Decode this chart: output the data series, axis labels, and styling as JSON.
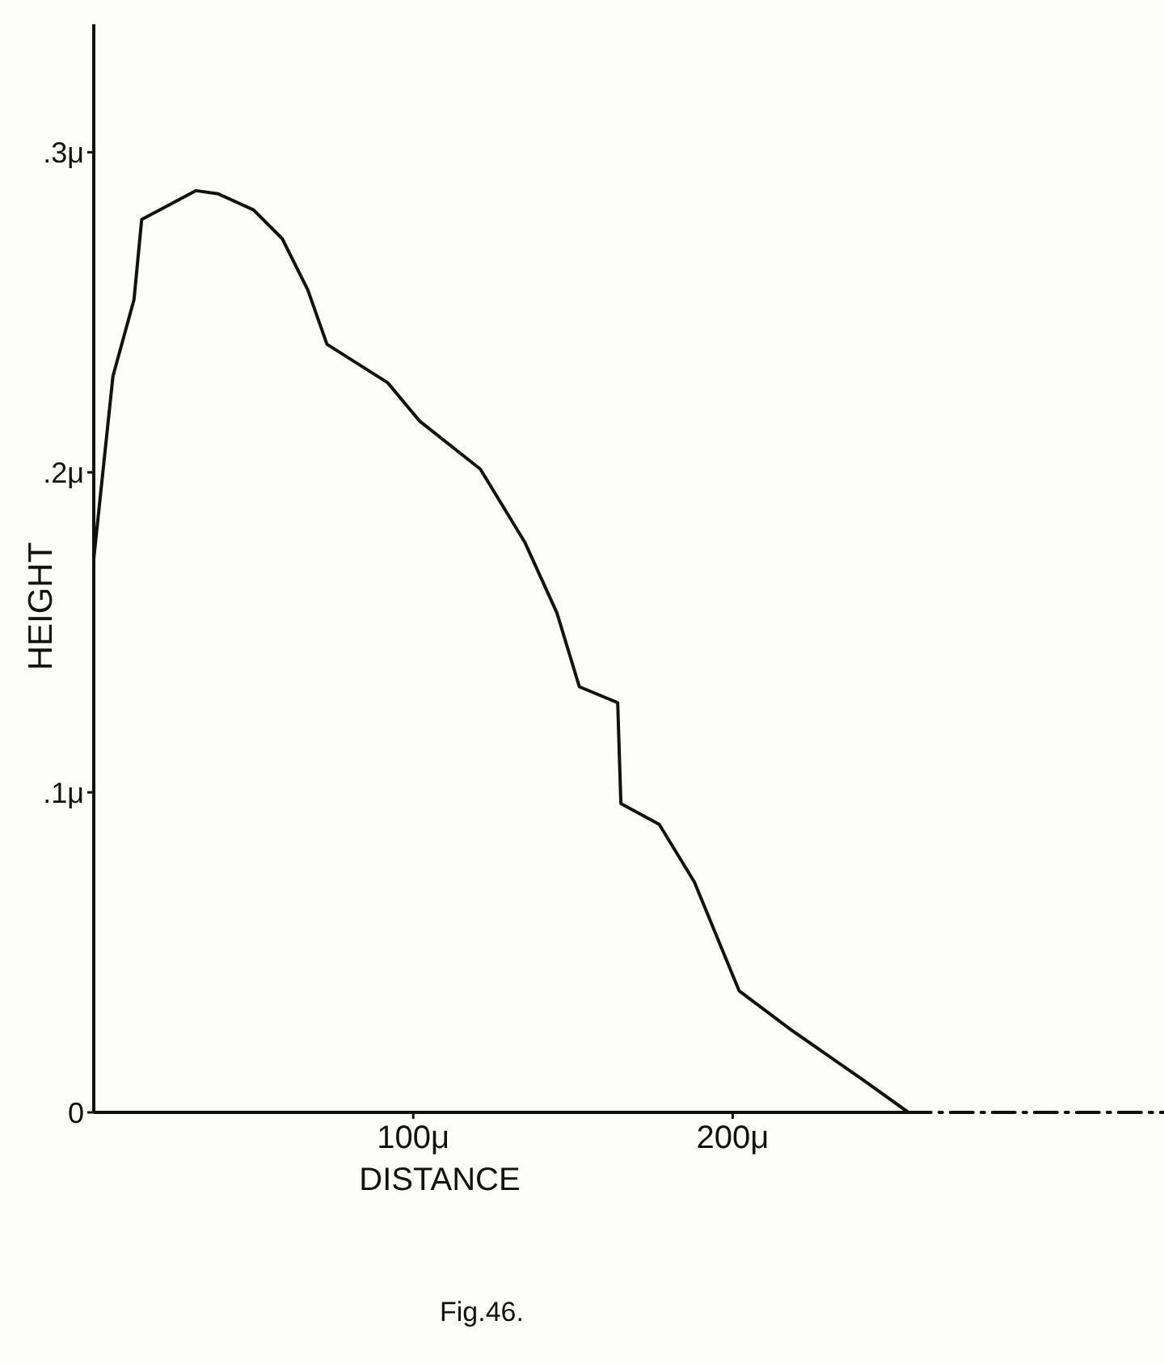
{
  "chart_data": {
    "type": "line",
    "xlabel": "DISTANCE",
    "ylabel": "HEIGHT",
    "annotations": [
      "Fig.46."
    ],
    "xlim": [
      0,
      335
    ],
    "ylim": [
      0,
      0.34
    ],
    "xticks": [
      {
        "value": 100,
        "label": "100μ"
      },
      {
        "value": 200,
        "label": "200μ"
      }
    ],
    "yticks": [
      {
        "value": 0,
        "label": "0"
      },
      {
        "value": 0.1,
        "label": ".1μ"
      },
      {
        "value": 0.2,
        "label": ".2μ"
      },
      {
        "value": 0.3,
        "label": ".3μ"
      }
    ],
    "grid": false,
    "marker": "none",
    "series": [
      {
        "color": "#111111",
        "line_style": "solid",
        "x": [
          0,
          6,
          12.6,
          15,
          32,
          39,
          50,
          59,
          67,
          73,
          92,
          102,
          121,
          135,
          145,
          152,
          164,
          165,
          177,
          188,
          202,
          218,
          241,
          255
        ],
        "values": [
          0.173,
          0.23,
          0.254,
          0.279,
          0.288,
          0.287,
          0.282,
          0.273,
          0.257,
          0.24,
          0.228,
          0.216,
          0.201,
          0.178,
          0.156,
          0.133,
          0.128,
          0.0965,
          0.09,
          0.072,
          0.038,
          0.026,
          0.01,
          0
        ]
      },
      {
        "color": "#111111",
        "line_style": "dashed",
        "x": [
          255,
          335
        ],
        "values": [
          0,
          0
        ]
      }
    ]
  }
}
